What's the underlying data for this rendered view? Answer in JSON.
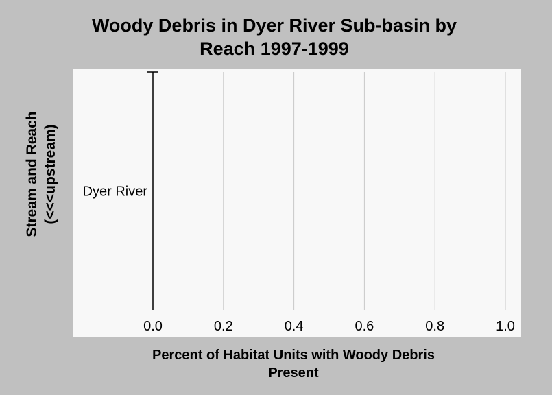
{
  "chart_data": {
    "type": "bar",
    "orientation": "horizontal",
    "title": "Woody Debris in Dyer River Sub-basin by Reach 1997-1999",
    "title_lines": [
      "Woody Debris in Dyer River Sub-basin by",
      "Reach 1997-1999"
    ],
    "xlabel": "Percent of Habitat Units with Woody Debris Present",
    "xlabel_lines": [
      "Percent of Habitat Units with Woody Debris",
      "Present"
    ],
    "ylabel": "Stream and Reach (<<<upstream)",
    "ylabel_lines": [
      "Stream and Reach",
      "(<<<upstream)"
    ],
    "categories": [
      "Dyer River"
    ],
    "values": [
      0.0
    ],
    "xlim": [
      0.0,
      1.0
    ],
    "xticks": [
      "0.0",
      "0.2",
      "0.4",
      "0.6",
      "0.8",
      "1.0"
    ],
    "grid": "vertical",
    "colors": {
      "page_background": "#c0c0c0",
      "plot_background": "#f8f8f8",
      "gridline": "#c8c8c8",
      "axis": "#000000"
    }
  }
}
